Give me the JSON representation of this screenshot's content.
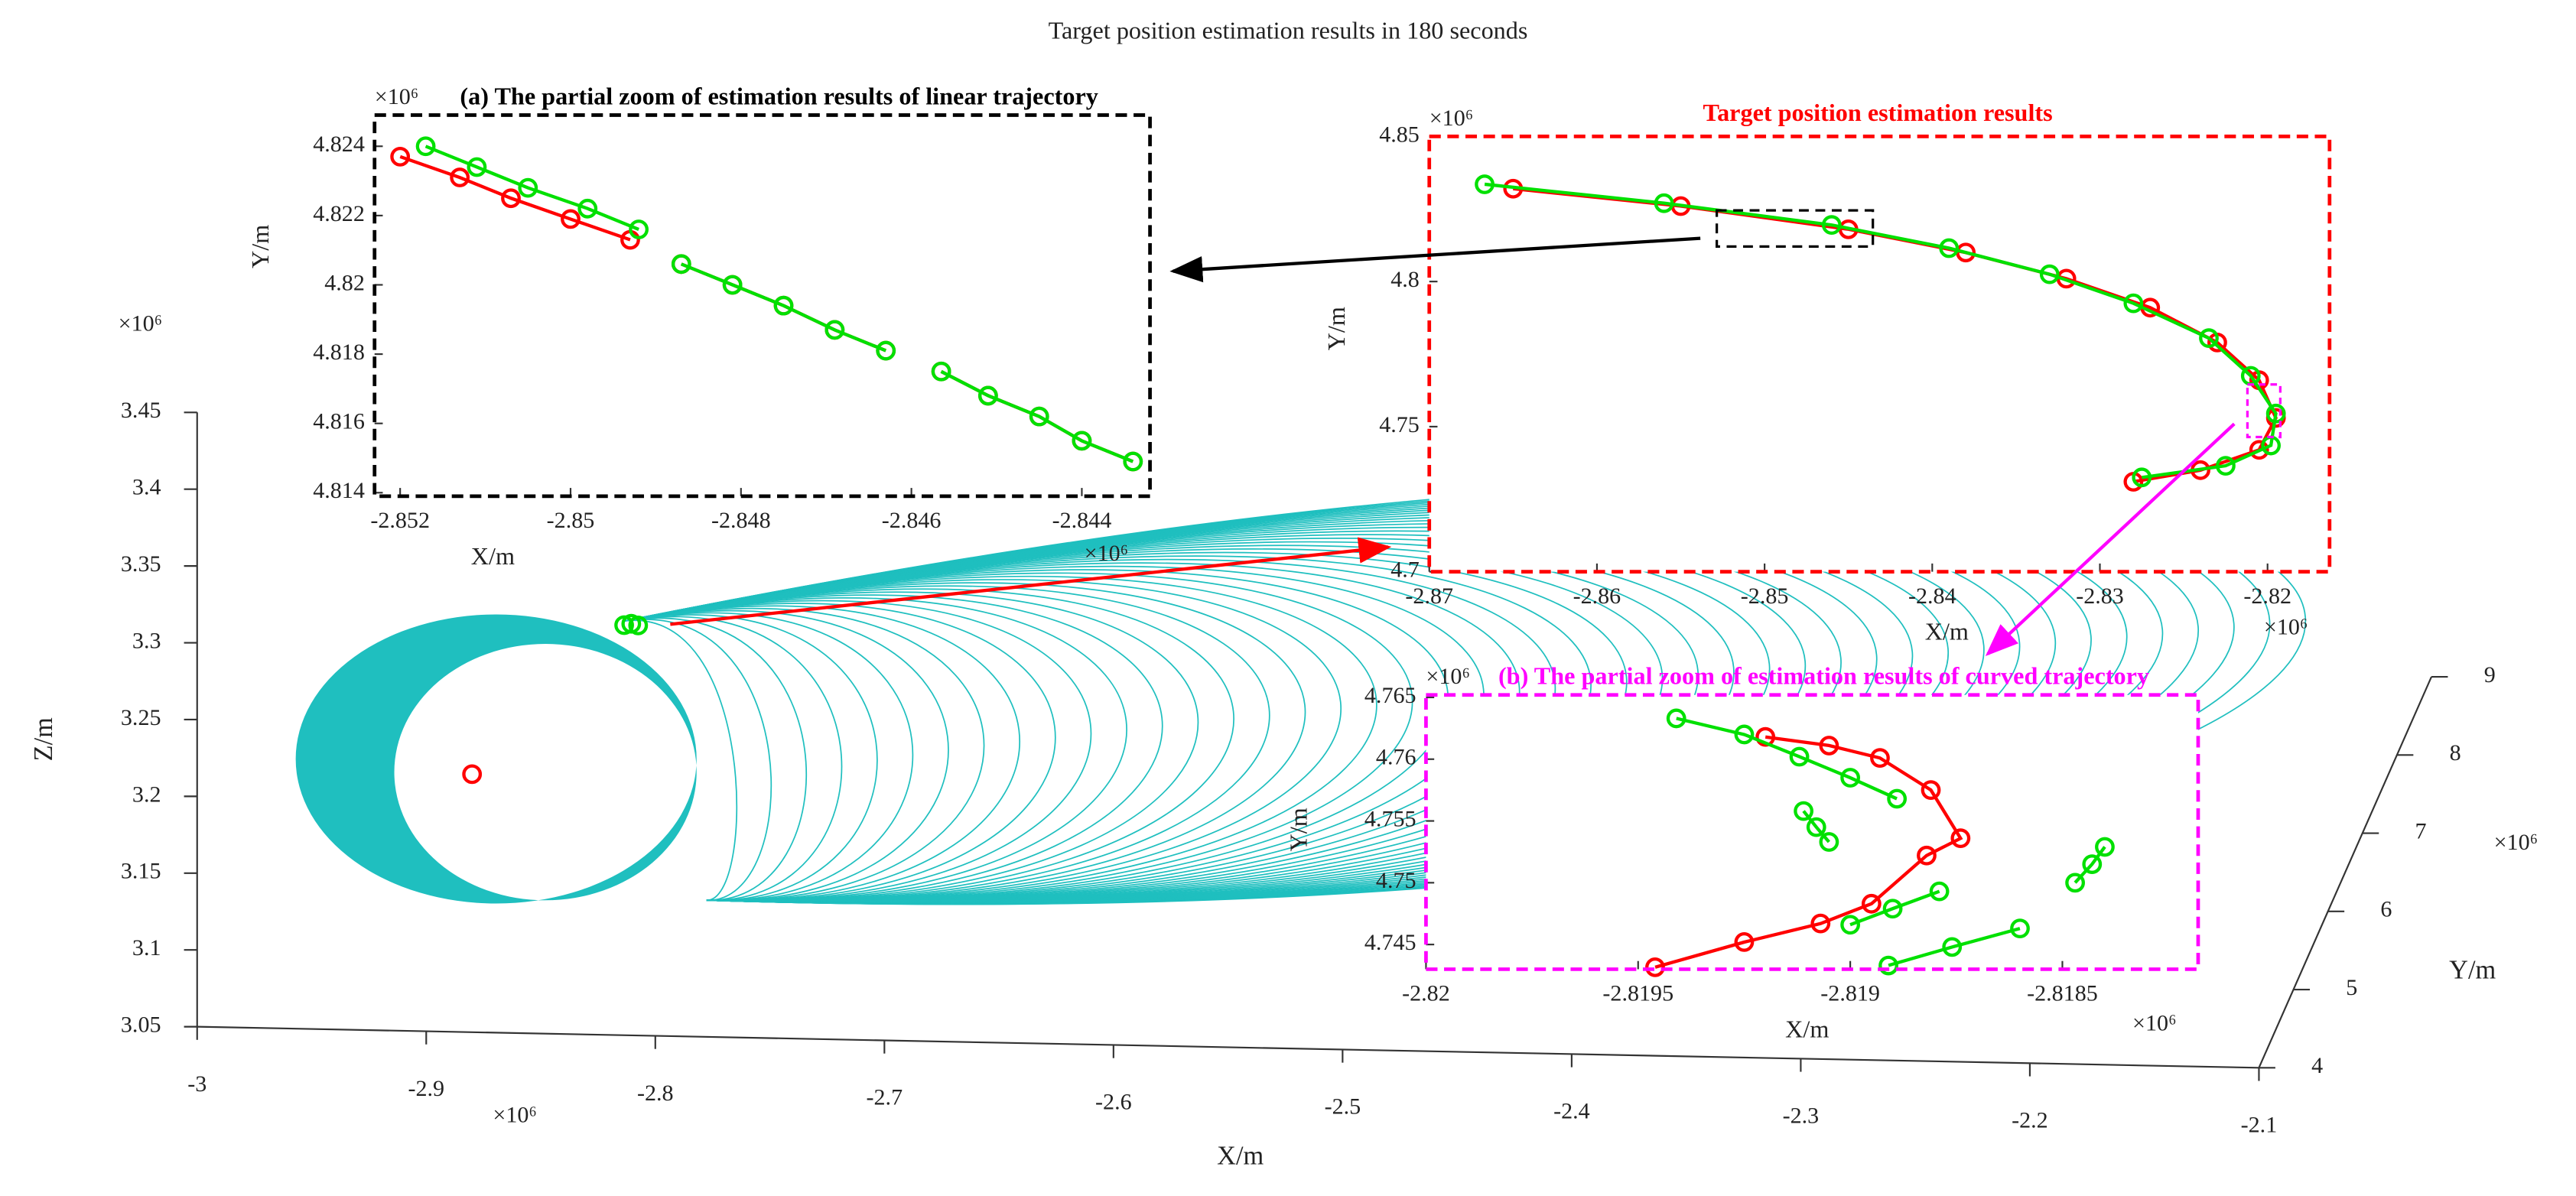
{
  "chart_data": [
    {
      "type": "scatter3d",
      "title": "Target position estimation results in 180 seconds",
      "xlabel": "X/m",
      "ylabel": "Y/m",
      "zlabel": "Z/m",
      "x_exponent": "×10⁶",
      "y_exponent": "×10⁶",
      "z_exponent": "×10⁶",
      "xlim": [
        -3,
        -2.1
      ],
      "xticks": [
        -3,
        -2.9,
        -2.8,
        -2.7,
        -2.6,
        -2.5,
        -2.4,
        -2.3,
        -2.2,
        -2.1
      ],
      "ylim": [
        4,
        9
      ],
      "yticks": [
        4,
        5,
        6,
        7,
        8,
        9
      ],
      "zlim": [
        3.05,
        3.45
      ],
      "zticks": [
        3.05,
        3.1,
        3.15,
        3.2,
        3.25,
        3.3,
        3.35,
        3.4,
        3.45
      ],
      "surface_color": "#1fbfbf",
      "series": [
        {
          "color": "#ff0000",
          "x": [
            -2.88
          ],
          "y": [
            4
          ],
          "z": [
            3.218
          ]
        },
        {
          "color": "#00e000",
          "x": [
            -2.8136,
            -2.8105,
            -2.8075
          ],
          "y": [
            4,
            4,
            4
          ],
          "z": [
            3.317,
            3.318,
            3.317
          ]
        }
      ]
    },
    {
      "type": "line",
      "title": "(a) The partial zoom of estimation results of linear trajectory",
      "title_color": "#000000",
      "frame_color": "#000000",
      "xlabel": "X/m",
      "ylabel": "Y/m",
      "x_exponent": "×10⁶",
      "y_exponent": "×10⁶",
      "xlim": [
        -2.8523,
        -2.8432
      ],
      "xticks": [
        -2.852,
        -2.85,
        -2.848,
        -2.846,
        -2.844
      ],
      "ylim": [
        4.8139,
        4.8249
      ],
      "yticks": [
        4.814,
        4.816,
        4.818,
        4.82,
        4.822,
        4.824
      ],
      "series": [
        {
          "color": "#ff0000",
          "x": [
            -2.852,
            -2.8513,
            -2.8507,
            -2.85,
            -2.8493,
            null,
            -2.8487,
            -2.8481,
            -2.8475,
            -2.8469,
            -2.8463,
            null,
            -2.84565,
            -2.8451,
            -2.8445,
            -2.844,
            -2.8434
          ],
          "y": [
            4.8237,
            4.8231,
            4.8225,
            4.8219,
            4.8213,
            null,
            4.8206,
            4.82,
            4.8194,
            4.8187,
            4.8181,
            null,
            4.8175,
            4.8168,
            4.8162,
            4.8155,
            4.8149
          ]
        },
        {
          "color": "#00e000",
          "x": [
            -2.8517,
            -2.8511,
            -2.8505,
            -2.8498,
            -2.8492,
            null,
            -2.8487,
            -2.8481,
            -2.8475,
            -2.8469,
            -2.8463,
            null,
            -2.84565,
            -2.8451,
            -2.8445,
            -2.844,
            -2.8434
          ],
          "y": [
            4.824,
            4.8234,
            4.8228,
            4.8222,
            4.8216,
            null,
            4.8206,
            4.82,
            4.8194,
            4.8187,
            4.8181,
            null,
            4.8175,
            4.8168,
            4.8162,
            4.8155,
            4.8149
          ]
        }
      ]
    },
    {
      "type": "line",
      "title": "Target position estimation results",
      "title_color": "#ff0000",
      "frame_color": "#ff0000",
      "xlabel": "X/m",
      "ylabel": "Y/m",
      "x_exponent": "×10⁶",
      "y_exponent": "×10⁶",
      "xlim": [
        -2.87,
        -2.8163
      ],
      "xticks": [
        -2.87,
        -2.86,
        -2.85,
        -2.84,
        -2.83,
        -2.82
      ],
      "ylim": [
        4.7,
        4.85
      ],
      "yticks": [
        4.7,
        4.75,
        4.8,
        4.85
      ],
      "series": [
        {
          "color": "#ff0000",
          "x": [
            -2.865,
            -2.855,
            -2.845,
            -2.838,
            -2.832,
            -2.827,
            -2.823,
            -2.8205,
            -2.8195,
            -2.8205,
            -2.824,
            -2.828
          ],
          "y": [
            4.832,
            4.826,
            4.818,
            4.81,
            4.801,
            4.791,
            4.779,
            4.766,
            4.753,
            4.742,
            4.735,
            4.731
          ]
        },
        {
          "color": "#00e000",
          "x": [
            -2.8667,
            -2.856,
            -2.846,
            -2.839,
            -2.833,
            -2.828,
            -2.8235,
            -2.821,
            -2.8195,
            -2.8198,
            -2.8225,
            -2.8275
          ],
          "y": [
            4.8335,
            4.827,
            4.8195,
            4.8115,
            4.8025,
            4.7925,
            4.7805,
            4.7675,
            4.7545,
            4.7435,
            4.7365,
            4.7325
          ]
        }
      ]
    },
    {
      "type": "line",
      "title": "(b) The partial zoom of estimation results of curved trajectory",
      "title_color": "#ff00ff",
      "frame_color": "#ff00ff",
      "xlabel": "X/m",
      "ylabel": "Y/m",
      "x_exponent": "×10⁶",
      "y_exponent": "×10⁶",
      "xlim": [
        -2.82,
        -2.81818
      ],
      "xticks": [
        -2.82,
        -2.8195,
        -2.819,
        -2.8185
      ],
      "ylim": [
        4.743,
        4.7652
      ],
      "yticks": [
        4.745,
        4.75,
        4.755,
        4.76,
        4.765
      ],
      "series": [
        {
          "color": "#ff0000",
          "x": [
            -2.81946,
            -2.81925,
            -2.81907,
            -2.81895,
            -2.81882,
            -2.81874,
            -2.81881,
            -2.81893,
            -2.81905,
            -2.8192
          ],
          "y": [
            4.74316,
            4.7452,
            4.7467,
            4.7483,
            4.7522,
            4.7536,
            4.7575,
            4.7601,
            4.7611,
            4.7618
          ]
        },
        {
          "color": "#00e000",
          "x": [
            -2.81941,
            -2.81925,
            -2.81912,
            -2.819,
            -2.81889,
            null,
            -2.81911,
            -2.81908,
            -2.81905,
            null,
            -2.819,
            -2.8189,
            -2.81879,
            null,
            -2.81891,
            -2.81876,
            -2.8186,
            null,
            -2.81847,
            -2.81843,
            -2.8184
          ],
          "y": [
            4.7633,
            4.762,
            4.7602,
            4.7585,
            4.7568,
            null,
            4.7558,
            4.7545,
            4.7533,
            null,
            4.7466,
            4.7479,
            4.7493,
            null,
            4.7433,
            4.7448,
            4.7463,
            null,
            4.75,
            4.7515,
            4.7529
          ]
        }
      ]
    }
  ]
}
